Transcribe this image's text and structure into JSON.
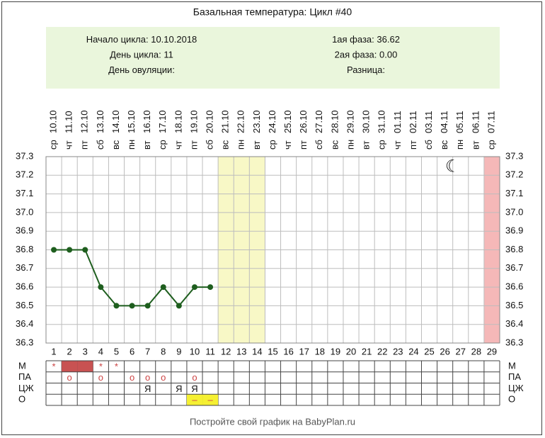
{
  "chart_data": {
    "type": "line",
    "title": "Базальная температура: Цикл #40",
    "info": {
      "left": [
        {
          "label": "Начало цикла:",
          "value": "10.10.2018"
        },
        {
          "label": "День цикла:",
          "value": "11"
        },
        {
          "label": "День овуляции:"
        }
      ],
      "right": [
        {
          "label": "1ая фаза:",
          "value": "36.62"
        },
        {
          "label": "2ая фаза:",
          "value": "0.00"
        },
        {
          "label": "Разница:"
        }
      ]
    },
    "categories": [
      "1",
      "2",
      "3",
      "4",
      "5",
      "6",
      "7",
      "8",
      "9",
      "10",
      "11",
      "12",
      "13",
      "14",
      "15",
      "16",
      "17",
      "18",
      "19",
      "20",
      "21",
      "22",
      "23",
      "24",
      "25",
      "26",
      "27",
      "28",
      "29"
    ],
    "weekdays": [
      "ср",
      "чт",
      "пт",
      "сб",
      "вс",
      "пн",
      "вт",
      "ср",
      "чт",
      "пт",
      "сб",
      "вс",
      "пн",
      "вт",
      "ср",
      "чт",
      "пт",
      "сб",
      "вс",
      "пн",
      "вт",
      "ср",
      "чт",
      "пт",
      "сб",
      "вс",
      "пн",
      "вт",
      "ср"
    ],
    "dates": [
      "10.10",
      "11.10",
      "12.10",
      "13.10",
      "14.10",
      "15.10",
      "16.10",
      "17.10",
      "18.10",
      "19.10",
      "20.10",
      "21.10",
      "22.10",
      "23.10",
      "24.10",
      "25.10",
      "26.10",
      "27.10",
      "28.10",
      "29.10",
      "30.10",
      "31.10",
      "01.11",
      "02.11",
      "03.11",
      "04.11",
      "05.11",
      "06.11",
      "07.11"
    ],
    "values": [
      36.8,
      36.8,
      36.8,
      36.6,
      36.5,
      36.5,
      36.5,
      36.6,
      36.5,
      36.6,
      36.6,
      null,
      null,
      null,
      null,
      null,
      null,
      null,
      null,
      null,
      null,
      null,
      null,
      null,
      null,
      null,
      null,
      null,
      null
    ],
    "color": "#1e5e1e",
    "ylim": [
      36.3,
      37.3
    ],
    "yticks": [
      36.3,
      36.4,
      36.5,
      36.6,
      36.7,
      36.8,
      36.9,
      {
        "value": 37,
        "label": "37.0"
      },
      37.1,
      37.2,
      37.3
    ],
    "grid": true,
    "highlights": [
      {
        "from": 12,
        "to": 14,
        "color": "#f8f8c6"
      },
      {
        "from": 29,
        "to": 29,
        "color": "#f5b8b8"
      }
    ],
    "icon": {
      "day": 26,
      "text": "☾"
    },
    "rows": [
      {
        "label": "М",
        "marks": [
          {
            "day": 1,
            "text": "*"
          },
          {
            "day": 4,
            "text": "*"
          },
          {
            "day": 5,
            "text": "*"
          }
        ],
        "fills": [
          {
            "day": 2,
            "color": "#c85252"
          },
          {
            "day": 3,
            "color": "#c85252"
          }
        ]
      },
      {
        "label": "ПА",
        "marks": [
          {
            "day": 2,
            "text": "o"
          },
          {
            "day": 4,
            "text": "o"
          },
          {
            "day": 6,
            "text": "o"
          },
          {
            "day": 7,
            "text": "o"
          },
          {
            "day": 8,
            "text": "o"
          },
          {
            "day": 10,
            "text": "o"
          }
        ],
        "fills": []
      },
      {
        "label": "ЦЖ",
        "marks": [
          {
            "day": 7,
            "text": "Я"
          },
          {
            "day": 9,
            "text": "Я"
          },
          {
            "day": 10,
            "text": "Я"
          }
        ],
        "fills": []
      },
      {
        "label": "О",
        "marks": [
          {
            "day": 10,
            "text": "–"
          },
          {
            "day": 11,
            "text": "–"
          }
        ],
        "fills": [
          {
            "day": 10,
            "color": "#f5f032"
          },
          {
            "day": 11,
            "color": "#f5f032"
          }
        ]
      }
    ],
    "footer": "Постройте свой график на BabyPlan.ru"
  }
}
